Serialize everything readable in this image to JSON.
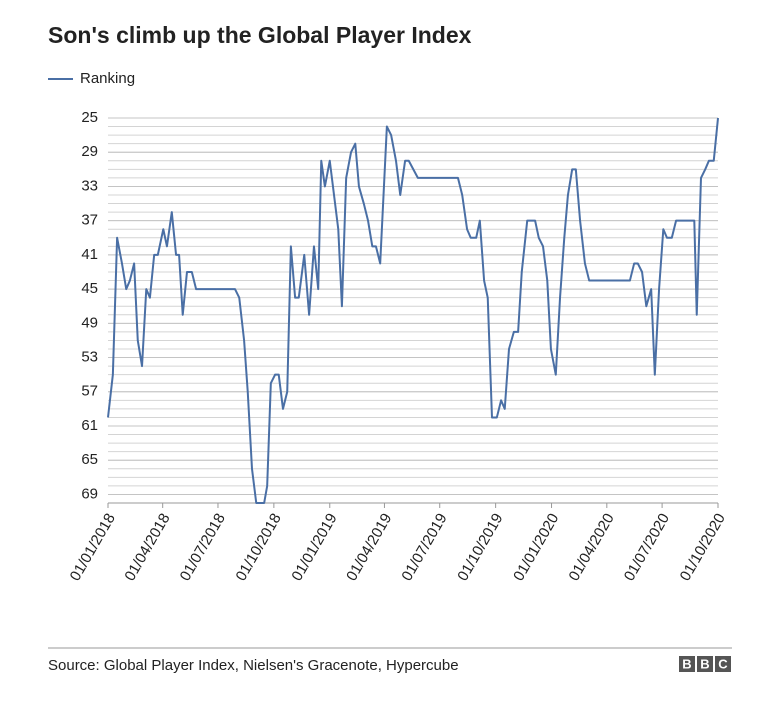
{
  "chart_data": {
    "type": "line",
    "title": "Son's climb up the Global Player Index",
    "source": "Source: Global Player Index, Nielsen's Gracenote, Hypercube",
    "logo": [
      "B",
      "B",
      "C"
    ],
    "legend": "top-left",
    "grid": true,
    "inverted_y": true,
    "ylim": [
      25,
      70
    ],
    "yticks": [
      25,
      29,
      33,
      37,
      41,
      45,
      49,
      53,
      57,
      61,
      65,
      69
    ],
    "xlim": [
      "2018-01-01",
      "2020-10-01"
    ],
    "xticks": [
      {
        "value": "2018-01-01",
        "label": "01/01/2018"
      },
      {
        "value": "2018-04-01",
        "label": "01/04/2018"
      },
      {
        "value": "2018-07-01",
        "label": "01/07/2018"
      },
      {
        "value": "2018-10-01",
        "label": "01/10/2018"
      },
      {
        "value": "2019-01-01",
        "label": "01/01/2019"
      },
      {
        "value": "2019-04-01",
        "label": "01/04/2019"
      },
      {
        "value": "2019-07-01",
        "label": "01/07/2019"
      },
      {
        "value": "2019-10-01",
        "label": "01/10/2019"
      },
      {
        "value": "2020-01-01",
        "label": "01/01/2020"
      },
      {
        "value": "2020-04-01",
        "label": "01/04/2020"
      },
      {
        "value": "2020-07-01",
        "label": "01/07/2020"
      },
      {
        "value": "2020-10-01",
        "label": "01/10/2020"
      }
    ],
    "x": [
      "2018-01-01",
      "2018-01-09",
      "2018-01-16",
      "2018-01-24",
      "2018-01-31",
      "2018-02-06",
      "2018-02-13",
      "2018-02-19",
      "2018-02-26",
      "2018-03-05",
      "2018-03-11",
      "2018-03-18",
      "2018-03-24",
      "2018-04-02",
      "2018-04-08",
      "2018-04-16",
      "2018-04-23",
      "2018-04-28",
      "2018-05-04",
      "2018-05-11",
      "2018-05-19",
      "2018-05-26",
      "2018-07-29",
      "2018-08-05",
      "2018-08-13",
      "2018-08-19",
      "2018-08-26",
      "2018-09-02",
      "2018-09-15",
      "2018-09-20",
      "2018-09-26",
      "2018-10-03",
      "2018-10-09",
      "2018-10-16",
      "2018-10-23",
      "2018-10-29",
      "2018-11-05",
      "2018-11-11",
      "2018-11-20",
      "2018-11-28",
      "2018-12-06",
      "2018-12-13",
      "2018-12-18",
      "2018-12-24",
      "2019-01-01",
      "2019-01-15",
      "2019-01-21",
      "2019-01-28",
      "2019-02-05",
      "2019-02-12",
      "2019-02-18",
      "2019-02-26",
      "2019-03-05",
      "2019-03-12",
      "2019-03-18",
      "2019-03-25",
      "2019-04-05",
      "2019-04-12",
      "2019-04-20",
      "2019-04-27",
      "2019-05-05",
      "2019-05-11",
      "2019-05-26",
      "2019-07-31",
      "2019-08-07",
      "2019-08-15",
      "2019-08-21",
      "2019-08-30",
      "2019-09-05",
      "2019-09-12",
      "2019-09-18",
      "2019-09-25",
      "2019-10-03",
      "2019-10-10",
      "2019-10-16",
      "2019-10-23",
      "2019-10-31",
      "2019-11-07",
      "2019-11-13",
      "2019-11-22",
      "2019-12-05",
      "2019-12-11",
      "2019-12-18",
      "2019-12-25",
      "2019-12-31",
      "2020-01-08",
      "2020-01-15",
      "2020-01-22",
      "2020-01-28",
      "2020-02-04",
      "2020-02-10",
      "2020-02-17",
      "2020-02-25",
      "2020-03-03",
      "2020-05-09",
      "2020-05-16",
      "2020-05-22",
      "2020-05-29",
      "2020-06-05",
      "2020-06-13",
      "2020-06-19",
      "2020-06-26",
      "2020-07-03",
      "2020-07-09",
      "2020-07-17",
      "2020-07-24",
      "2020-08-23",
      "2020-08-27",
      "2020-09-03",
      "2020-09-10",
      "2020-09-16",
      "2020-09-24",
      "2020-10-01"
    ],
    "series": [
      {
        "name": "Ranking",
        "color": "#4a6fa5",
        "values": [
          60,
          55,
          39,
          42,
          45,
          44,
          42,
          51,
          54,
          45,
          46,
          41,
          41,
          38,
          40,
          36,
          41,
          41,
          48,
          43,
          43,
          45,
          45,
          46,
          51,
          57,
          66,
          70,
          70,
          68,
          56,
          55,
          55,
          59,
          57,
          40,
          46,
          46,
          41,
          48,
          40,
          45,
          30,
          33,
          30,
          38,
          47,
          32,
          29,
          28,
          33,
          35,
          37,
          40,
          40,
          42,
          26,
          27,
          30,
          34,
          30,
          30,
          32,
          32,
          34,
          38,
          39,
          39,
          37,
          44,
          46,
          60,
          60,
          58,
          59,
          52,
          50,
          50,
          43,
          37,
          37,
          39,
          40,
          44,
          52,
          55,
          46,
          39,
          34,
          31,
          31,
          37,
          42,
          44,
          44,
          42,
          42,
          43,
          47,
          45,
          55,
          45,
          38,
          39,
          39,
          37,
          37,
          48,
          32,
          31,
          30,
          30,
          25
        ]
      }
    ]
  }
}
